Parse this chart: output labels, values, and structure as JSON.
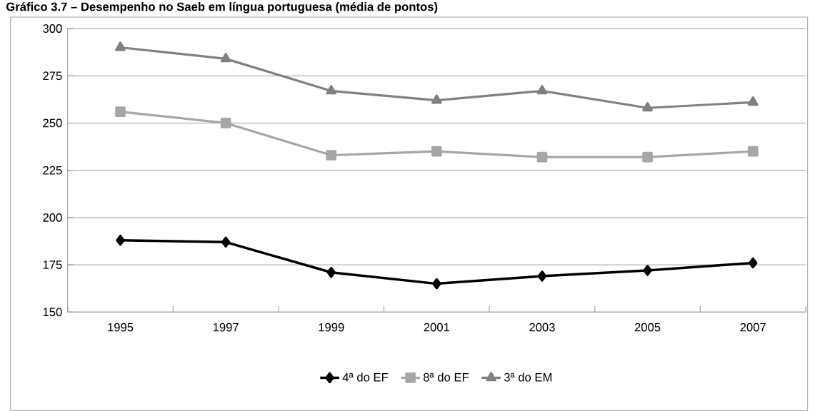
{
  "chart_data": {
    "type": "line",
    "title": "Gráfico 3.7 – Desempenho no Saeb em língua portuguesa (média de pontos)",
    "categories": [
      "1995",
      "1997",
      "1999",
      "2001",
      "2003",
      "2005",
      "2007"
    ],
    "ylim": [
      150,
      300
    ],
    "yticks": [
      150,
      175,
      200,
      225,
      250,
      275,
      300
    ],
    "grid": "y",
    "legend": "bottom",
    "line_style": "solid",
    "series": [
      {
        "name": "4ª do EF",
        "color": "#000000",
        "marker": "diamond",
        "values": [
          188,
          187,
          171,
          165,
          169,
          172,
          176
        ]
      },
      {
        "name": "8ª do EF",
        "color": "#a6a6a6",
        "marker": "square",
        "values": [
          256,
          250,
          233,
          235,
          232,
          232,
          235
        ]
      },
      {
        "name": "3ª do EM",
        "color": "#808080",
        "marker": "triangle",
        "values": [
          290,
          284,
          267,
          262,
          267,
          258,
          261
        ]
      }
    ]
  }
}
